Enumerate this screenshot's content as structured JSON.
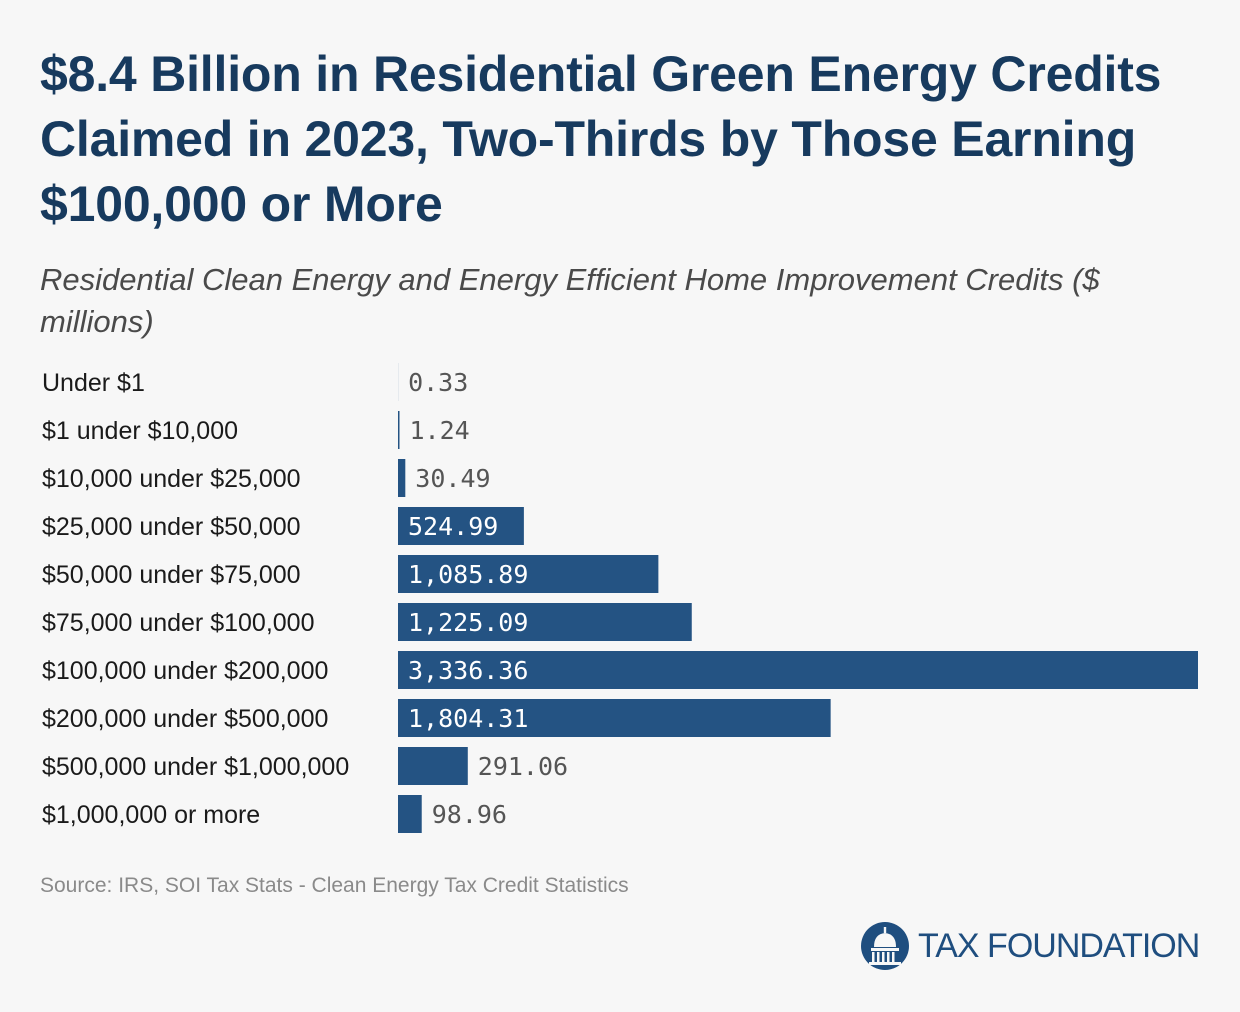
{
  "header": {
    "title": "$8.4 Billion in Residential Green Energy Credits Claimed in 2023, Two-Thirds by Those Earning $100,000 or More",
    "subtitle": "Residential Clean Energy and Energy Efficient Home Improvement Credits ($ millions)"
  },
  "chart_data": {
    "type": "bar",
    "orientation": "horizontal",
    "title": "$8.4 Billion in Residential Green Energy Credits Claimed in 2023, Two-Thirds by Those Earning $100,000 or More",
    "subtitle": "Residential Clean Energy and Energy Efficient Home Improvement Credits ($ millions)",
    "categories": [
      "Under $1",
      "$1 under $10,000",
      "$10,000 under $25,000",
      "$25,000 under $50,000",
      "$50,000 under $75,000",
      "$75,000 under $100,000",
      "$100,000 under $200,000",
      "$200,000 under $500,000",
      "$500,000 under $1,000,000",
      "$1,000,000 or more"
    ],
    "values": [
      0.33,
      1.24,
      30.49,
      524.99,
      1085.89,
      1225.09,
      3336.36,
      1804.31,
      291.06,
      98.96
    ],
    "value_labels": [
      "0.33",
      "1.24",
      "30.49",
      "524.99",
      "1,085.89",
      "1,225.09",
      "3,336.36",
      "1,804.31",
      "291.06",
      "98.96"
    ],
    "xlim": [
      0,
      3336.36
    ],
    "grid": false,
    "legend": "none",
    "bar_color": "#245383"
  },
  "footer": {
    "source": "Source: IRS, SOI Tax Stats - Clean Energy Tax Credit Statistics",
    "brand": "TAX FOUNDATION",
    "brand_color": "#1f4e7f",
    "logo_icon": "capitol-dome-icon"
  }
}
